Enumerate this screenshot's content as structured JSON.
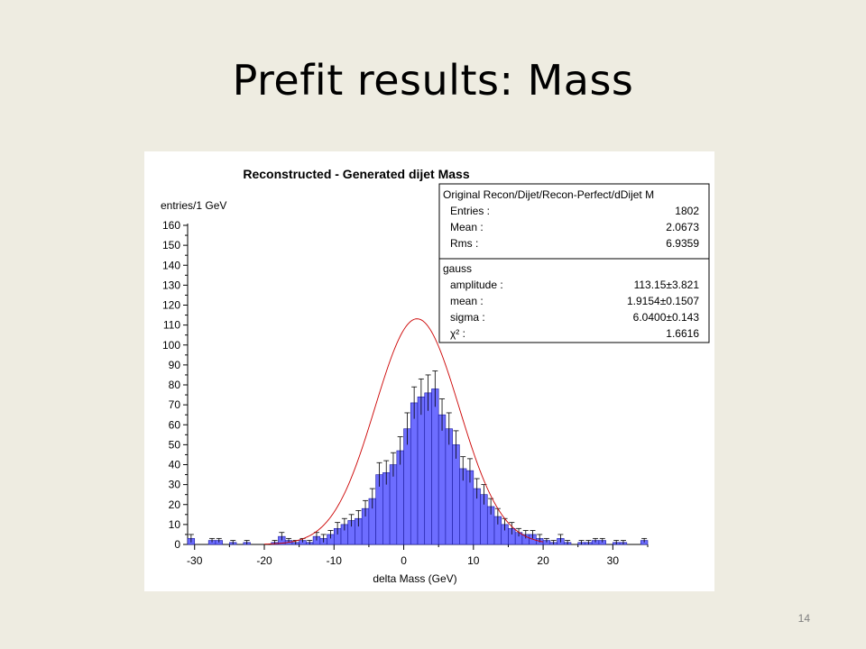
{
  "slide": {
    "title": "Prefit results: Mass",
    "page_number": "14"
  },
  "stats_box": {
    "header": "Original Recon/Dijet/Recon-Perfect/dDijet M",
    "rows": [
      {
        "label": "Entries :",
        "value": "1802"
      },
      {
        "label": "Mean :",
        "value": "2.0673"
      },
      {
        "label": "Rms :",
        "value": "6.9359"
      }
    ]
  },
  "fit_box": {
    "header": "gauss",
    "rows": [
      {
        "label": "amplitude :",
        "value": "113.15±3.821"
      },
      {
        "label": "mean :",
        "value": "1.9154±0.1507"
      },
      {
        "label": "sigma :",
        "value": "6.0400±0.143"
      },
      {
        "label": "χ² :",
        "value": "1.6616"
      }
    ]
  },
  "colors": {
    "bar_fill": "#6d6dff",
    "bar_stroke": "#1a1aa0",
    "fit_line": "#cc0000",
    "background": "#eeece1"
  },
  "chart_data": {
    "type": "bar",
    "title": "Reconstructed - Generated dijet Mass",
    "xlabel": "delta Mass (GeV)",
    "ylabel": "entries/1 GeV",
    "xlim": [
      -31,
      35
    ],
    "ylim": [
      0,
      160
    ],
    "xticks": [
      "-30",
      "-20",
      "-10",
      "0",
      "10",
      "20",
      "30"
    ],
    "yticks": [
      "0",
      "10",
      "20",
      "30",
      "40",
      "50",
      "60",
      "70",
      "80",
      "90",
      "100",
      "110",
      "120",
      "130",
      "140",
      "150",
      "160"
    ],
    "grid": false,
    "series": [
      {
        "bin_width": 1,
        "x": [
          -30.5,
          -29.5,
          -28.5,
          -27.5,
          -26.5,
          -25.5,
          -24.5,
          -23.5,
          -22.5,
          -21.5,
          -20.5,
          -19.5,
          -18.5,
          -17.5,
          -16.5,
          -15.5,
          -14.5,
          -13.5,
          -12.5,
          -11.5,
          -10.5,
          -9.5,
          -8.5,
          -7.5,
          -6.5,
          -5.5,
          -4.5,
          -3.5,
          -2.5,
          -1.5,
          -0.5,
          0.5,
          1.5,
          2.5,
          3.5,
          4.5,
          5.5,
          6.5,
          7.5,
          8.5,
          9.5,
          10.5,
          11.5,
          12.5,
          13.5,
          14.5,
          15.5,
          16.5,
          17.5,
          18.5,
          19.5,
          20.5,
          21.5,
          22.5,
          23.5,
          24.5,
          25.5,
          26.5,
          27.5,
          28.5,
          29.5,
          30.5,
          31.5,
          32.5,
          33.5,
          34.5
        ],
        "values": [
          3,
          0,
          0,
          2,
          2,
          0,
          1,
          0,
          1,
          0,
          0,
          0,
          1,
          4,
          2,
          1,
          2,
          1,
          4,
          3,
          5,
          8,
          10,
          12,
          13,
          18,
          23,
          35,
          36,
          40,
          47,
          58,
          71,
          74,
          76,
          78,
          65,
          58,
          50,
          38,
          37,
          28,
          25,
          19,
          14,
          10,
          8,
          6,
          5,
          5,
          3,
          2,
          1,
          3,
          1,
          0,
          1,
          1,
          2,
          2,
          0,
          1,
          1,
          0,
          0,
          2
        ],
        "errors": [
          2,
          0,
          0,
          1,
          1,
          0,
          1,
          0,
          1,
          0,
          0,
          0,
          1,
          2,
          1,
          1,
          1,
          1,
          2,
          2,
          2,
          3,
          3,
          3,
          4,
          4,
          5,
          6,
          6,
          6,
          7,
          8,
          8,
          9,
          9,
          9,
          8,
          8,
          7,
          6,
          6,
          5,
          5,
          4,
          4,
          3,
          3,
          2,
          2,
          2,
          2,
          1,
          1,
          2,
          1,
          0,
          1,
          1,
          1,
          1,
          0,
          1,
          1,
          0,
          0,
          1
        ]
      }
    ],
    "fit": {
      "name": "gauss",
      "amplitude": 113.15,
      "mean": 1.9154,
      "sigma": 6.04
    }
  }
}
